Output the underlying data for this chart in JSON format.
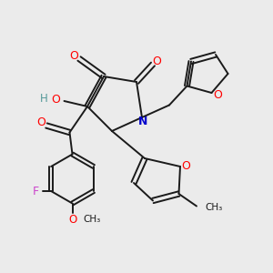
{
  "bg_color": "#ebebeb",
  "bond_color": "#1a1a1a",
  "oxygen_color": "#ff0000",
  "nitrogen_color": "#0000cc",
  "fluorine_color": "#cc44cc",
  "hydroxy_color": "#559999",
  "figsize": [
    3.0,
    3.0
  ],
  "dpi": 100,
  "xlim": [
    0,
    10
  ],
  "ylim": [
    0,
    10
  ]
}
